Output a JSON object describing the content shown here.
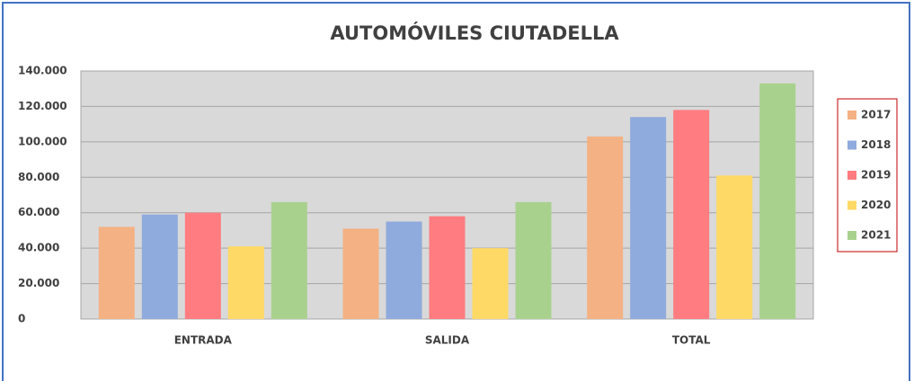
{
  "chart_data": {
    "type": "bar",
    "title": "AUTOMÓVILES CIUTADELLA",
    "categories": [
      "ENTRADA",
      "SALIDA",
      "TOTAL"
    ],
    "series": [
      {
        "name": "2017",
        "color": "#f4b183",
        "values": [
          52000,
          51000,
          103000
        ]
      },
      {
        "name": "2018",
        "color": "#8faadc",
        "values": [
          59000,
          55000,
          114000
        ]
      },
      {
        "name": "2019",
        "color": "#ff7c80",
        "values": [
          60000,
          58000,
          118000
        ]
      },
      {
        "name": "2020",
        "color": "#ffd966",
        "values": [
          41000,
          40000,
          81000
        ]
      },
      {
        "name": "2021",
        "color": "#a9d18e",
        "values": [
          66000,
          66000,
          133000
        ]
      }
    ],
    "ylim": [
      0,
      140000
    ],
    "yticks": [
      0,
      {
        "value": 20000,
        "label": "20.000"
      },
      {
        "value": 40000,
        "label": "40.000"
      },
      {
        "value": 60000,
        "label": "60.000"
      },
      {
        "value": 80000,
        "label": "80.000"
      },
      {
        "value": 100000,
        "label": "100.000"
      },
      {
        "value": 120000,
        "label": "120.000"
      },
      {
        "value": 140000,
        "label": "140.000"
      }
    ],
    "grid": true,
    "legend": "right"
  }
}
